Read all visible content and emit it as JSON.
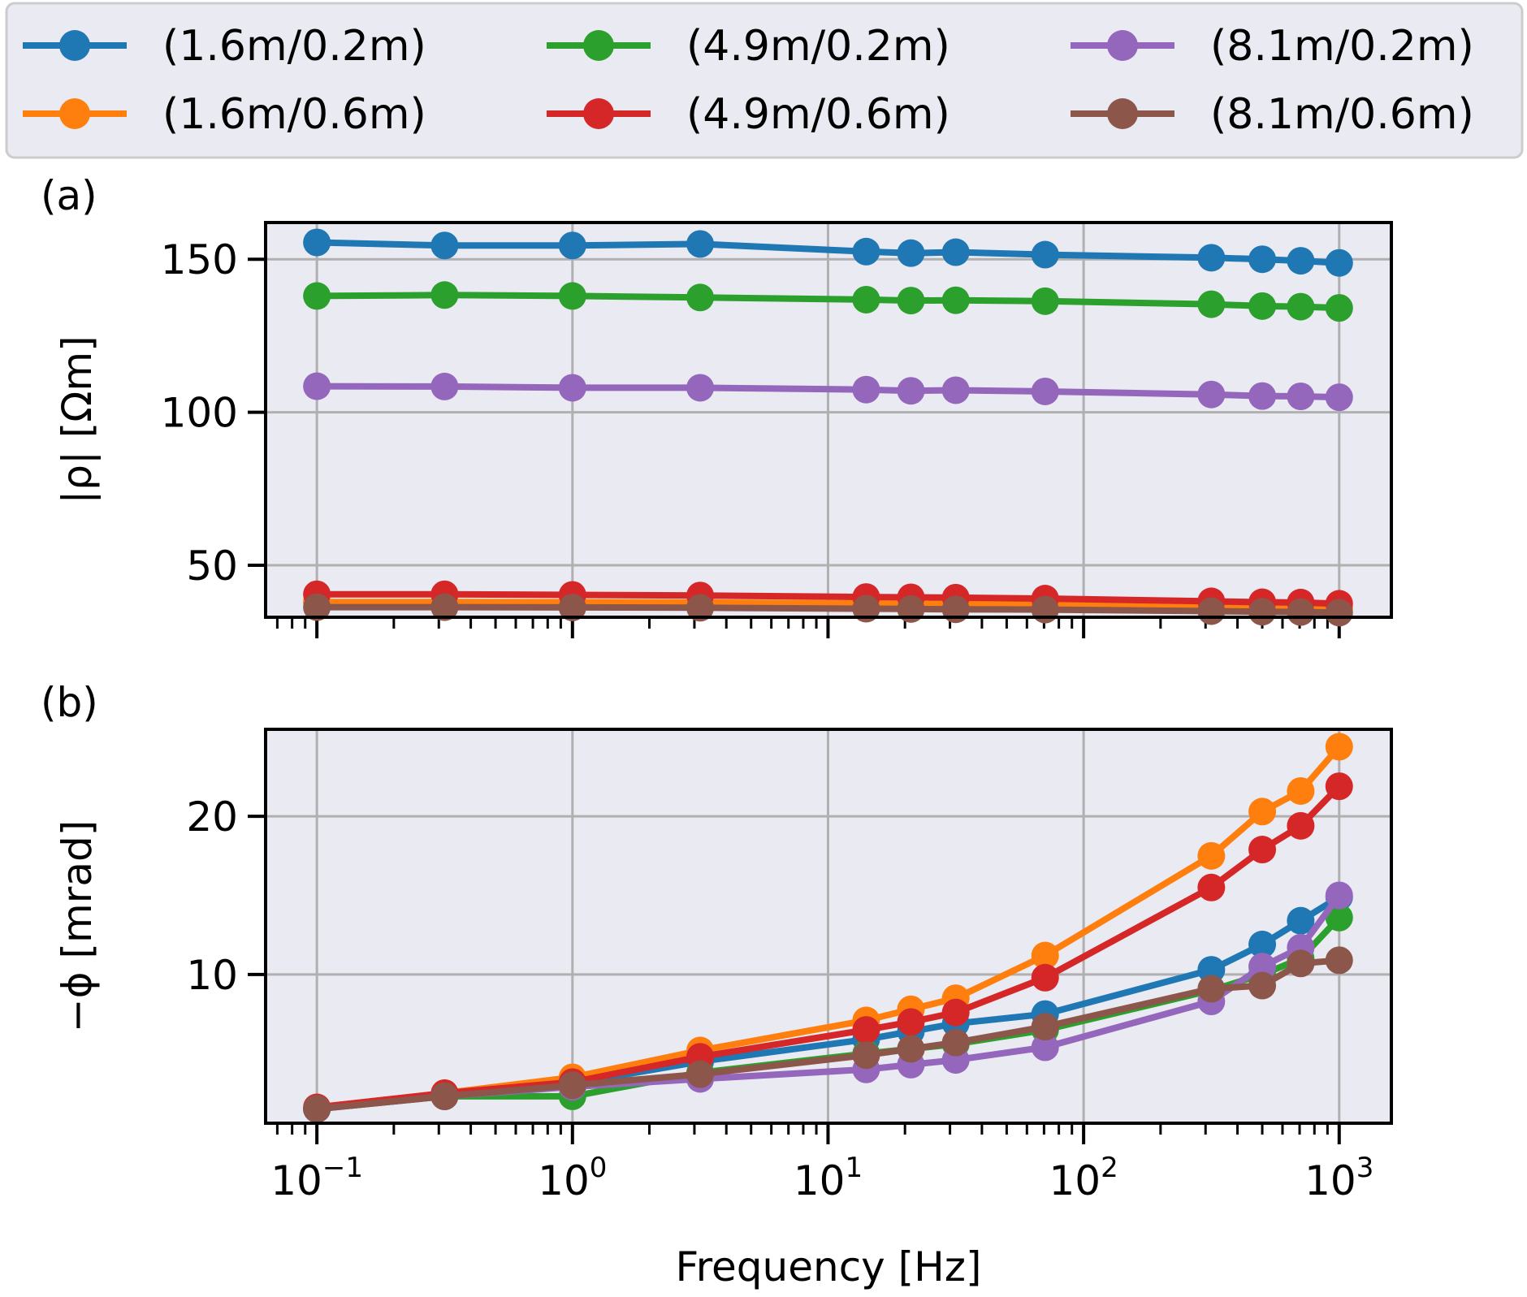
{
  "chart_data": {
    "type": "line",
    "xlabel": "Frequency [Hz]",
    "x_scale": "log",
    "xlim": [
      0.063,
      1600
    ],
    "x_ticks": [
      {
        "base": "10",
        "exp": "−1",
        "value": 0.1
      },
      {
        "base": "10",
        "exp": "0",
        "value": 1
      },
      {
        "base": "10",
        "exp": "1",
        "value": 10
      },
      {
        "base": "10",
        "exp": "2",
        "value": 100
      },
      {
        "base": "10",
        "exp": "3",
        "value": 1000
      }
    ],
    "x": [
      0.1,
      0.316,
      1,
      3.16,
      14.1,
      21.1,
      31.6,
      70.7,
      316,
      500,
      707,
      1000
    ],
    "grid": true,
    "legend": {
      "placement": "top (above panels), 3 columns x 2 rows",
      "entries": [
        "(1.6m/0.2m)",
        "(1.6m/0.6m)",
        "(4.9m/0.2m)",
        "(4.9m/0.6m)",
        "(8.1m/0.2m)",
        "(8.1m/0.6m)"
      ]
    },
    "colors": {
      "(1.6m/0.2m)": "#1f77b4",
      "(1.6m/0.6m)": "#ff7f0e",
      "(4.9m/0.2m)": "#2ca02c",
      "(4.9m/0.6m)": "#d62728",
      "(8.1m/0.2m)": "#9467bd",
      "(8.1m/0.6m)": "#8c564b",
      "plot_background": "#eaeaf2",
      "grid": "#b0b0b0"
    },
    "panels": [
      {
        "label": "(a)",
        "ylabel": "|ρ| [Ωm]",
        "ylim": [
          33,
          162
        ],
        "yticks": [
          "50",
          "100",
          "150"
        ],
        "series": [
          {
            "name": "(1.6m/0.2m)",
            "values": [
              155.5,
              154.5,
              154.5,
              155,
              152.5,
              152,
              152.3,
              151.5,
              150.5,
              150,
              149.5,
              148.8
            ]
          },
          {
            "name": "(1.6m/0.6m)",
            "values": [
              38,
              38,
              37.9,
              37.8,
              37.5,
              37.4,
              37.3,
              37.1,
              36.5,
              36.3,
              36.2,
              36
            ]
          },
          {
            "name": "(4.9m/0.2m)",
            "values": [
              138,
              138.3,
              138,
              137.5,
              136.8,
              136.5,
              136.6,
              136.3,
              135.3,
              134.7,
              134.5,
              134.1
            ]
          },
          {
            "name": "(4.9m/0.6m)",
            "values": [
              40.5,
              40.5,
              40.3,
              40.1,
              39.6,
              39.5,
              39.4,
              39.1,
              38.2,
              37.9,
              37.8,
              37.4
            ]
          },
          {
            "name": "(8.1m/0.2m)",
            "values": [
              108.5,
              108.4,
              108,
              108,
              107.4,
              107,
              107.2,
              106.8,
              105.8,
              105.3,
              105.2,
              104.9
            ]
          },
          {
            "name": "(8.1m/0.6m)",
            "values": [
              36.3,
              36.3,
              36.2,
              36.1,
              35.8,
              35.7,
              35.6,
              35.5,
              35,
              34.8,
              34.7,
              34.5
            ]
          }
        ]
      },
      {
        "label": "(b)",
        "ylabel": "−ϕ [mrad]",
        "ylim": [
          0.6,
          25.5
        ],
        "yticks": [
          "10",
          "20"
        ],
        "series": [
          {
            "name": "(1.6m/0.2m)",
            "values": [
              1.5,
              2.4,
              3.1,
              4.5,
              5.9,
              6.4,
              6.9,
              7.5,
              10.3,
              11.9,
              13.4,
              14.9
            ]
          },
          {
            "name": "(1.6m/0.6m)",
            "values": [
              1.6,
              2.5,
              3.5,
              5.2,
              7.1,
              7.8,
              8.5,
              11.2,
              17.5,
              20.3,
              21.6,
              24.4
            ]
          },
          {
            "name": "(4.9m/0.2m)",
            "values": [
              1.5,
              2.3,
              2.3,
              3.8,
              5,
              5.3,
              5.6,
              6.5,
              9,
              10,
              11,
              13.6
            ]
          },
          {
            "name": "(4.9m/0.6m)",
            "values": [
              1.6,
              2.5,
              3.2,
              4.8,
              6.5,
              7,
              7.6,
              9.8,
              15.5,
              17.9,
              19.4,
              21.9
            ]
          },
          {
            "name": "(8.1m/0.2m)",
            "values": [
              1.5,
              2.3,
              2.9,
              3.4,
              4,
              4.3,
              4.6,
              5.4,
              8.3,
              10.5,
              11.7,
              15
            ]
          },
          {
            "name": "(8.1m/0.6m)",
            "values": [
              1.5,
              2.3,
              3,
              3.7,
              4.9,
              5.3,
              5.7,
              6.7,
              9.1,
              9.3,
              10.7,
              10.9
            ]
          }
        ]
      }
    ]
  }
}
